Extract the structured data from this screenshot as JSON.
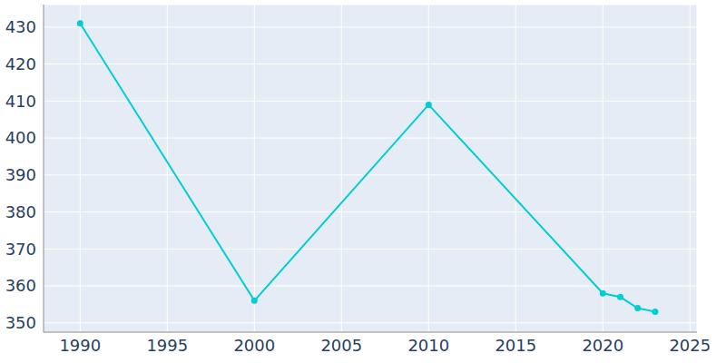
{
  "chart_data": {
    "type": "line",
    "x": [
      1990,
      2000,
      2010,
      2020,
      2021,
      2022,
      2023
    ],
    "values": [
      431,
      356,
      409,
      358,
      357,
      354,
      353
    ],
    "color": "#00CED1",
    "marker": "circle",
    "xlim": [
      1987.9,
      2025.4
    ],
    "xticks": [
      1990,
      1995,
      2000,
      2005,
      2010,
      2015,
      2020,
      2025
    ],
    "ylim": [
      347.5,
      436.1
    ],
    "yticks": [
      350,
      360,
      370,
      380,
      390,
      400,
      410,
      420,
      430
    ],
    "grid": true
  }
}
